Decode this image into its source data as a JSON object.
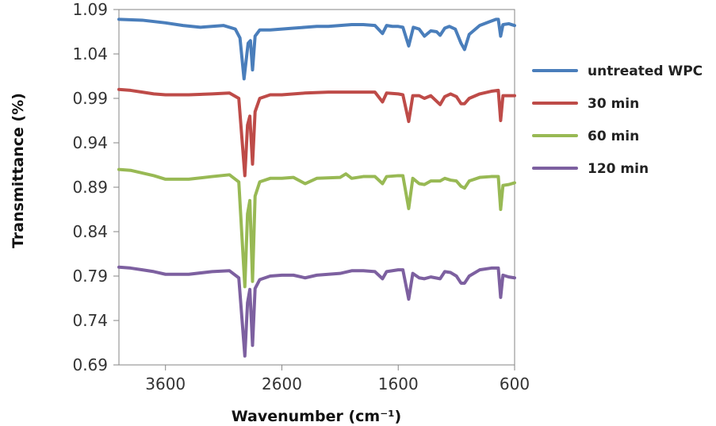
{
  "chart_data": {
    "type": "line",
    "title": "",
    "xlabel": "Wavenumber (cm⁻¹)",
    "ylabel": "Transmittance (%)",
    "x_reversed": true,
    "xlim": [
      4000,
      600
    ],
    "ylim": [
      0.69,
      1.09
    ],
    "xticks": [
      3600,
      2600,
      1600,
      600
    ],
    "yticks": [
      0.69,
      0.74,
      0.79,
      0.84,
      0.89,
      0.94,
      0.99,
      1.04,
      1.09
    ],
    "xtick_labels": [
      "3600",
      "2600",
      "1600",
      "600"
    ],
    "ytick_labels": [
      "0.69",
      "0.74",
      "0.79",
      "0.84",
      "0.89",
      "0.94",
      "0.99",
      "1.04",
      "1.09"
    ],
    "grid": false,
    "legend_position": "right",
    "series": [
      {
        "name": "untreated WPC",
        "color": "#4a7ebb",
        "points": [
          [
            4000,
            1.079
          ],
          [
            3800,
            1.078
          ],
          [
            3600,
            1.075
          ],
          [
            3450,
            1.072
          ],
          [
            3300,
            1.07
          ],
          [
            3100,
            1.072
          ],
          [
            3000,
            1.068
          ],
          [
            2960,
            1.058
          ],
          [
            2925,
            1.012
          ],
          [
            2890,
            1.052
          ],
          [
            2870,
            1.055
          ],
          [
            2852,
            1.022
          ],
          [
            2830,
            1.06
          ],
          [
            2790,
            1.067
          ],
          [
            2700,
            1.067
          ],
          [
            2600,
            1.068
          ],
          [
            2500,
            1.069
          ],
          [
            2400,
            1.07
          ],
          [
            2300,
            1.071
          ],
          [
            2200,
            1.071
          ],
          [
            2100,
            1.072
          ],
          [
            2000,
            1.073
          ],
          [
            1900,
            1.073
          ],
          [
            1800,
            1.072
          ],
          [
            1735,
            1.063
          ],
          [
            1700,
            1.072
          ],
          [
            1650,
            1.071
          ],
          [
            1600,
            1.071
          ],
          [
            1560,
            1.07
          ],
          [
            1510,
            1.049
          ],
          [
            1470,
            1.07
          ],
          [
            1420,
            1.068
          ],
          [
            1375,
            1.06
          ],
          [
            1320,
            1.066
          ],
          [
            1270,
            1.065
          ],
          [
            1240,
            1.061
          ],
          [
            1200,
            1.069
          ],
          [
            1160,
            1.071
          ],
          [
            1110,
            1.068
          ],
          [
            1060,
            1.052
          ],
          [
            1030,
            1.045
          ],
          [
            990,
            1.062
          ],
          [
            900,
            1.072
          ],
          [
            820,
            1.076
          ],
          [
            760,
            1.079
          ],
          [
            740,
            1.079
          ],
          [
            720,
            1.06
          ],
          [
            700,
            1.073
          ],
          [
            650,
            1.074
          ],
          [
            600,
            1.072
          ]
        ]
      },
      {
        "name": "30 min",
        "color": "#be4b48",
        "points": [
          [
            4000,
            1.0
          ],
          [
            3900,
            0.999
          ],
          [
            3800,
            0.997
          ],
          [
            3700,
            0.995
          ],
          [
            3600,
            0.994
          ],
          [
            3400,
            0.994
          ],
          [
            3200,
            0.995
          ],
          [
            3050,
            0.996
          ],
          [
            2970,
            0.99
          ],
          [
            2918,
            0.903
          ],
          [
            2895,
            0.96
          ],
          [
            2875,
            0.97
          ],
          [
            2852,
            0.916
          ],
          [
            2830,
            0.975
          ],
          [
            2790,
            0.99
          ],
          [
            2700,
            0.994
          ],
          [
            2600,
            0.994
          ],
          [
            2400,
            0.996
          ],
          [
            2200,
            0.997
          ],
          [
            2000,
            0.997
          ],
          [
            1800,
            0.997
          ],
          [
            1735,
            0.986
          ],
          [
            1700,
            0.996
          ],
          [
            1600,
            0.995
          ],
          [
            1560,
            0.994
          ],
          [
            1510,
            0.964
          ],
          [
            1475,
            0.993
          ],
          [
            1420,
            0.993
          ],
          [
            1375,
            0.99
          ],
          [
            1320,
            0.993
          ],
          [
            1240,
            0.983
          ],
          [
            1200,
            0.992
          ],
          [
            1150,
            0.995
          ],
          [
            1100,
            0.992
          ],
          [
            1060,
            0.984
          ],
          [
            1030,
            0.984
          ],
          [
            990,
            0.99
          ],
          [
            900,
            0.995
          ],
          [
            800,
            0.998
          ],
          [
            740,
            0.999
          ],
          [
            720,
            0.965
          ],
          [
            700,
            0.993
          ],
          [
            650,
            0.993
          ],
          [
            600,
            0.993
          ]
        ]
      },
      {
        "name": "60 min",
        "color": "#98b954",
        "points": [
          [
            4000,
            0.91
          ],
          [
            3900,
            0.909
          ],
          [
            3800,
            0.906
          ],
          [
            3700,
            0.903
          ],
          [
            3600,
            0.899
          ],
          [
            3400,
            0.899
          ],
          [
            3200,
            0.902
          ],
          [
            3050,
            0.904
          ],
          [
            2970,
            0.896
          ],
          [
            2918,
            0.778
          ],
          [
            2895,
            0.86
          ],
          [
            2875,
            0.875
          ],
          [
            2852,
            0.784
          ],
          [
            2830,
            0.88
          ],
          [
            2790,
            0.896
          ],
          [
            2700,
            0.9
          ],
          [
            2600,
            0.9
          ],
          [
            2500,
            0.901
          ],
          [
            2400,
            0.894
          ],
          [
            2300,
            0.9
          ],
          [
            2100,
            0.901
          ],
          [
            2050,
            0.905
          ],
          [
            2000,
            0.9
          ],
          [
            1900,
            0.902
          ],
          [
            1800,
            0.902
          ],
          [
            1735,
            0.894
          ],
          [
            1700,
            0.902
          ],
          [
            1600,
            0.903
          ],
          [
            1560,
            0.903
          ],
          [
            1510,
            0.866
          ],
          [
            1475,
            0.9
          ],
          [
            1420,
            0.894
          ],
          [
            1375,
            0.893
          ],
          [
            1320,
            0.897
          ],
          [
            1240,
            0.897
          ],
          [
            1200,
            0.9
          ],
          [
            1150,
            0.898
          ],
          [
            1100,
            0.897
          ],
          [
            1060,
            0.891
          ],
          [
            1030,
            0.889
          ],
          [
            990,
            0.897
          ],
          [
            900,
            0.901
          ],
          [
            800,
            0.902
          ],
          [
            740,
            0.902
          ],
          [
            720,
            0.865
          ],
          [
            700,
            0.892
          ],
          [
            650,
            0.893
          ],
          [
            600,
            0.895
          ]
        ]
      },
      {
        "name": "120 min",
        "color": "#7d60a0",
        "points": [
          [
            4000,
            0.8
          ],
          [
            3900,
            0.799
          ],
          [
            3800,
            0.797
          ],
          [
            3700,
            0.795
          ],
          [
            3600,
            0.792
          ],
          [
            3400,
            0.792
          ],
          [
            3200,
            0.795
          ],
          [
            3050,
            0.796
          ],
          [
            2970,
            0.788
          ],
          [
            2918,
            0.7
          ],
          [
            2895,
            0.76
          ],
          [
            2875,
            0.775
          ],
          [
            2852,
            0.712
          ],
          [
            2830,
            0.776
          ],
          [
            2790,
            0.786
          ],
          [
            2700,
            0.79
          ],
          [
            2600,
            0.791
          ],
          [
            2500,
            0.791
          ],
          [
            2400,
            0.788
          ],
          [
            2300,
            0.791
          ],
          [
            2200,
            0.792
          ],
          [
            2100,
            0.793
          ],
          [
            2000,
            0.796
          ],
          [
            1900,
            0.796
          ],
          [
            1800,
            0.795
          ],
          [
            1735,
            0.787
          ],
          [
            1700,
            0.795
          ],
          [
            1600,
            0.797
          ],
          [
            1560,
            0.797
          ],
          [
            1510,
            0.764
          ],
          [
            1475,
            0.793
          ],
          [
            1420,
            0.788
          ],
          [
            1375,
            0.787
          ],
          [
            1320,
            0.789
          ],
          [
            1240,
            0.787
          ],
          [
            1200,
            0.795
          ],
          [
            1150,
            0.794
          ],
          [
            1100,
            0.79
          ],
          [
            1060,
            0.782
          ],
          [
            1030,
            0.782
          ],
          [
            990,
            0.79
          ],
          [
            900,
            0.797
          ],
          [
            800,
            0.799
          ],
          [
            740,
            0.799
          ],
          [
            720,
            0.766
          ],
          [
            700,
            0.791
          ],
          [
            650,
            0.789
          ],
          [
            600,
            0.788
          ]
        ]
      }
    ]
  }
}
